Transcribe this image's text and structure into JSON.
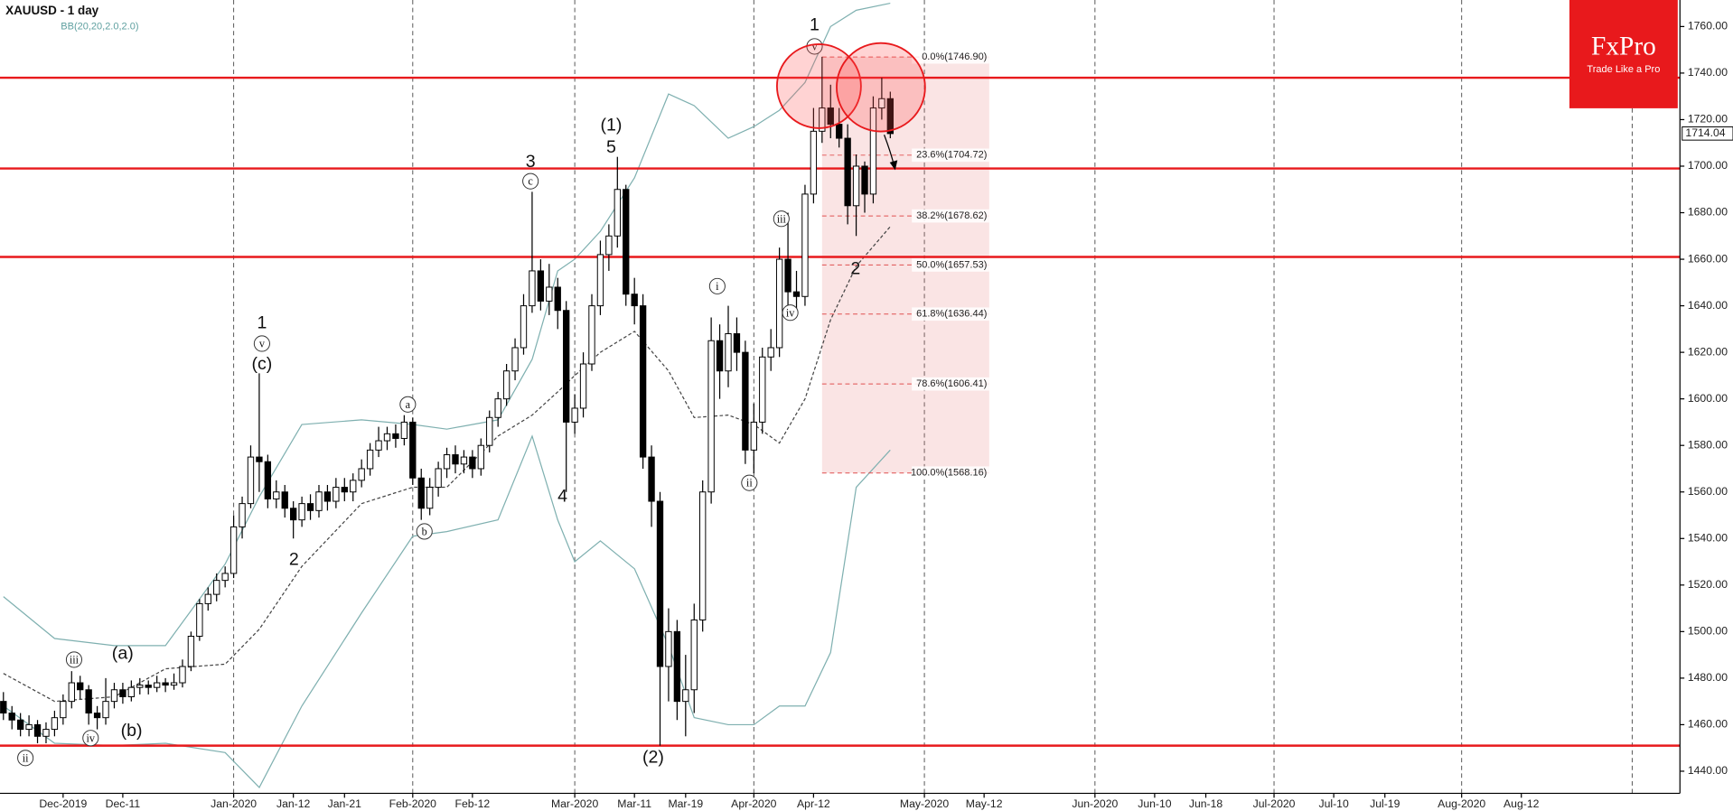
{
  "chart_data": {
    "type": "candlestick",
    "title": "XAUUSD - 1 day",
    "x": [
      0,
      1,
      2,
      3,
      4,
      5,
      6,
      7,
      8,
      9,
      10,
      11,
      12,
      13,
      14,
      15,
      16,
      17,
      18,
      19,
      20,
      21,
      22,
      23,
      24,
      25,
      26,
      27,
      28,
      29,
      30,
      31,
      32,
      33,
      34,
      35,
      36,
      37,
      38,
      39,
      40,
      41,
      42,
      43,
      44,
      45,
      46,
      47,
      48,
      49,
      50,
      51,
      52,
      53,
      54,
      55,
      56,
      57,
      58,
      59,
      60,
      61,
      62,
      63,
      64,
      65,
      66,
      67,
      68,
      69,
      70,
      71,
      72,
      73,
      74,
      75,
      76,
      77,
      78,
      79,
      80,
      81,
      82,
      83,
      84,
      85,
      86,
      87,
      88,
      89,
      90,
      91,
      92,
      93,
      94,
      95,
      96,
      97,
      98,
      99,
      100,
      101,
      102,
      103,
      104
    ],
    "open": [
      1470,
      1465,
      1462,
      1458,
      1460,
      1455,
      1458,
      1463,
      1470,
      1478,
      1475,
      1465,
      1463,
      1470,
      1475,
      1472,
      1476,
      1477,
      1476,
      1478,
      1477,
      1478,
      1485,
      1498,
      1512,
      1516,
      1522,
      1525,
      1545,
      1555,
      1575,
      1573,
      1557,
      1560,
      1553,
      1548,
      1555,
      1552,
      1560,
      1556,
      1562,
      1560,
      1565,
      1570,
      1578,
      1582,
      1585,
      1583,
      1590,
      1566,
      1553,
      1562,
      1570,
      1576,
      1572,
      1575,
      1570,
      1580,
      1592,
      1600,
      1612,
      1622,
      1640,
      1655,
      1642,
      1648,
      1638,
      1590,
      1596,
      1615,
      1640,
      1662,
      1670,
      1690,
      1645,
      1640,
      1575,
      1556,
      1485,
      1500,
      1470,
      1475,
      1505,
      1560,
      1625,
      1612,
      1628,
      1620,
      1578,
      1590,
      1618,
      1622,
      1660,
      1646,
      1644,
      1688,
      1715,
      1725,
      1718,
      1712,
      1683,
      1700,
      1688,
      1725,
      1729
    ],
    "high": [
      1474,
      1468,
      1465,
      1464,
      1462,
      1461,
      1466,
      1473,
      1483,
      1481,
      1477,
      1468,
      1480,
      1478,
      1478,
      1479,
      1480,
      1479,
      1481,
      1480,
      1482,
      1488,
      1500,
      1514,
      1519,
      1525,
      1528,
      1550,
      1558,
      1580,
      1611,
      1576,
      1565,
      1563,
      1556,
      1558,
      1559,
      1563,
      1563,
      1566,
      1566,
      1568,
      1574,
      1581,
      1588,
      1588,
      1589,
      1593,
      1592,
      1570,
      1566,
      1573,
      1579,
      1580,
      1578,
      1578,
      1583,
      1595,
      1603,
      1615,
      1626,
      1645,
      1689,
      1660,
      1658,
      1652,
      1642,
      1602,
      1620,
      1645,
      1668,
      1675,
      1704,
      1692,
      1652,
      1645,
      1580,
      1560,
      1510,
      1505,
      1490,
      1512,
      1565,
      1635,
      1632,
      1640,
      1635,
      1625,
      1598,
      1622,
      1630,
      1665,
      1680,
      1655,
      1692,
      1725,
      1747,
      1735,
      1725,
      1718,
      1705,
      1702,
      1730,
      1738,
      1732
    ],
    "low": [
      1462,
      1458,
      1455,
      1455,
      1452,
      1452,
      1455,
      1460,
      1467,
      1471,
      1460,
      1458,
      1460,
      1467,
      1469,
      1470,
      1473,
      1473,
      1474,
      1474,
      1475,
      1476,
      1483,
      1496,
      1509,
      1513,
      1519,
      1523,
      1540,
      1553,
      1560,
      1553,
      1553,
      1549,
      1540,
      1545,
      1548,
      1549,
      1552,
      1553,
      1556,
      1556,
      1562,
      1567,
      1575,
      1578,
      1579,
      1580,
      1563,
      1548,
      1550,
      1558,
      1566,
      1568,
      1568,
      1566,
      1567,
      1577,
      1588,
      1597,
      1608,
      1619,
      1637,
      1638,
      1636,
      1630,
      1560,
      1585,
      1592,
      1612,
      1636,
      1655,
      1665,
      1640,
      1632,
      1570,
      1545,
      1451,
      1470,
      1462,
      1455,
      1465,
      1500,
      1555,
      1600,
      1605,
      1612,
      1572,
      1568,
      1585,
      1612,
      1618,
      1640,
      1638,
      1640,
      1684,
      1710,
      1712,
      1708,
      1675,
      1670,
      1680,
      1684,
      1720,
      1712
    ],
    "close": [
      1465,
      1462,
      1458,
      1460,
      1455,
      1458,
      1463,
      1470,
      1478,
      1475,
      1465,
      1463,
      1470,
      1475,
      1472,
      1476,
      1477,
      1476,
      1478,
      1477,
      1478,
      1485,
      1498,
      1512,
      1516,
      1522,
      1525,
      1545,
      1555,
      1575,
      1573,
      1557,
      1560,
      1553,
      1548,
      1555,
      1552,
      1560,
      1556,
      1562,
      1560,
      1565,
      1570,
      1578,
      1582,
      1585,
      1583,
      1590,
      1566,
      1553,
      1562,
      1570,
      1576,
      1572,
      1575,
      1570,
      1580,
      1592,
      1600,
      1612,
      1622,
      1640,
      1655,
      1642,
      1648,
      1638,
      1590,
      1596,
      1615,
      1640,
      1662,
      1670,
      1690,
      1645,
      1640,
      1575,
      1556,
      1485,
      1500,
      1470,
      1475,
      1505,
      1560,
      1625,
      1612,
      1628,
      1620,
      1578,
      1590,
      1618,
      1622,
      1660,
      1646,
      1644,
      1688,
      1715,
      1725,
      1718,
      1712,
      1683,
      1700,
      1688,
      1725,
      1729,
      1714
    ],
    "up_color": "#ffffff",
    "down_color": "#000000",
    "xlim": [
      -0.4,
      196.6
    ],
    "ylim": [
      1430.5,
      1771.4
    ],
    "xticks": [
      {
        "value": 7,
        "label": "Dec-2019"
      },
      {
        "value": 14,
        "label": "Dec-11"
      },
      {
        "value": 27,
        "label": "Jan-2020"
      },
      {
        "value": 34,
        "label": "Jan-12"
      },
      {
        "value": 40,
        "label": "Jan-21"
      },
      {
        "value": 48,
        "label": "Feb-2020"
      },
      {
        "value": 55,
        "label": "Feb-12"
      },
      {
        "value": 67,
        "label": "Mar-2020"
      },
      {
        "value": 74,
        "label": "Mar-11"
      },
      {
        "value": 80,
        "label": "Mar-19"
      },
      {
        "value": 88,
        "label": "Apr-2020"
      },
      {
        "value": 95,
        "label": "Apr-12"
      },
      {
        "value": 108,
        "label": "May-2020"
      },
      {
        "value": 115,
        "label": "May-12"
      },
      {
        "value": 128,
        "label": "Jun-2020"
      },
      {
        "value": 135,
        "label": "Jun-10"
      },
      {
        "value": 141,
        "label": "Jun-18"
      },
      {
        "value": 149,
        "label": "Jul-2020"
      },
      {
        "value": 156,
        "label": "Jul-10"
      },
      {
        "value": 162,
        "label": "Jul-19"
      },
      {
        "value": 171,
        "label": "Aug-2020"
      },
      {
        "value": 178,
        "label": "Aug-12"
      }
    ],
    "xgrid": [
      27,
      48,
      67,
      88,
      108,
      128,
      149,
      171,
      191
    ],
    "yticks": [
      {
        "value": 1440,
        "label": "1440.00"
      },
      {
        "value": 1460,
        "label": "1460.00"
      },
      {
        "value": 1480,
        "label": "1480.00"
      },
      {
        "value": 1500,
        "label": "1500.00"
      },
      {
        "value": 1520,
        "label": "1520.00"
      },
      {
        "value": 1540,
        "label": "1540.00"
      },
      {
        "value": 1560,
        "label": "1560.00"
      },
      {
        "value": 1580,
        "label": "1580.00"
      },
      {
        "value": 1600,
        "label": "1600.00"
      },
      {
        "value": 1620,
        "label": "1620.00"
      },
      {
        "value": 1640,
        "label": "1640.00"
      },
      {
        "value": 1660,
        "label": "1660.00"
      },
      {
        "value": 1680,
        "label": "1680.00"
      },
      {
        "value": 1700,
        "label": "1700.00"
      },
      {
        "value": 1720,
        "label": "1720.00"
      },
      {
        "value": 1740,
        "label": "1740.00"
      },
      {
        "value": 1760,
        "label": "1760.00"
      }
    ],
    "last_price": 1714.04,
    "indicator": {
      "name": "BB(20,20,2.0,2.0)",
      "color": "#7fb0b0",
      "x": [
        0,
        6,
        13,
        19,
        26,
        30,
        35,
        42,
        48,
        52,
        58,
        62,
        65,
        67,
        70,
        74,
        78,
        81,
        85,
        88,
        91,
        94,
        97,
        100,
        104
      ],
      "upper": [
        1515,
        1497,
        1494,
        1494,
        1529,
        1558,
        1589,
        1591,
        1589,
        1587,
        1591,
        1617,
        1655,
        1660,
        1672,
        1695,
        1731,
        1726,
        1712,
        1717,
        1724,
        1736,
        1760,
        1767,
        1770
      ],
      "middle": [
        1482,
        1470,
        1472,
        1484,
        1486,
        1501,
        1528,
        1555,
        1562,
        1562,
        1584,
        1593,
        1603,
        1610,
        1620,
        1629,
        1612,
        1592,
        1593,
        1589,
        1581,
        1600,
        1634,
        1657,
        1674
      ],
      "lower": [
        1468,
        1452,
        1451,
        1452,
        1448,
        1433,
        1468,
        1508,
        1541,
        1543,
        1548,
        1584,
        1548,
        1530,
        1539,
        1527,
        1494,
        1463,
        1460,
        1460,
        1468,
        1468,
        1491,
        1562,
        1578
      ]
    },
    "hlines": {
      "color": "#e8191c",
      "values": [
        1738,
        1699,
        1661,
        1451
      ]
    },
    "fib": {
      "color": "#e05050",
      "xlim": [
        96,
        115.6
      ],
      "levels": [
        {
          "value": 1746.9,
          "label": "0.0%(1746.90)"
        },
        {
          "value": 1704.72,
          "label": "23.6%(1704.72)"
        },
        {
          "value": 1678.62,
          "label": "38.2%(1678.62)"
        },
        {
          "value": 1657.53,
          "label": "50.0%(1657.53)"
        },
        {
          "value": 1636.44,
          "label": "61.8%(1636.44)"
        },
        {
          "value": 1606.41,
          "label": "78.6%(1606.41)"
        },
        {
          "value": 1568.16,
          "label": "100.0%(1568.16)"
        }
      ]
    },
    "annotations": [
      "1",
      "v",
      "(1)",
      "5",
      "3",
      "c",
      "1",
      "v",
      "(c)",
      "a",
      "b",
      "2",
      "4",
      "(2)",
      "i",
      "ii",
      "iii",
      "iv",
      "2",
      "iii",
      "(a)",
      "iv",
      "(b)",
      "ii"
    ],
    "logo": {
      "title": "FxPro",
      "tagline": "Trade Like a Pro"
    }
  }
}
